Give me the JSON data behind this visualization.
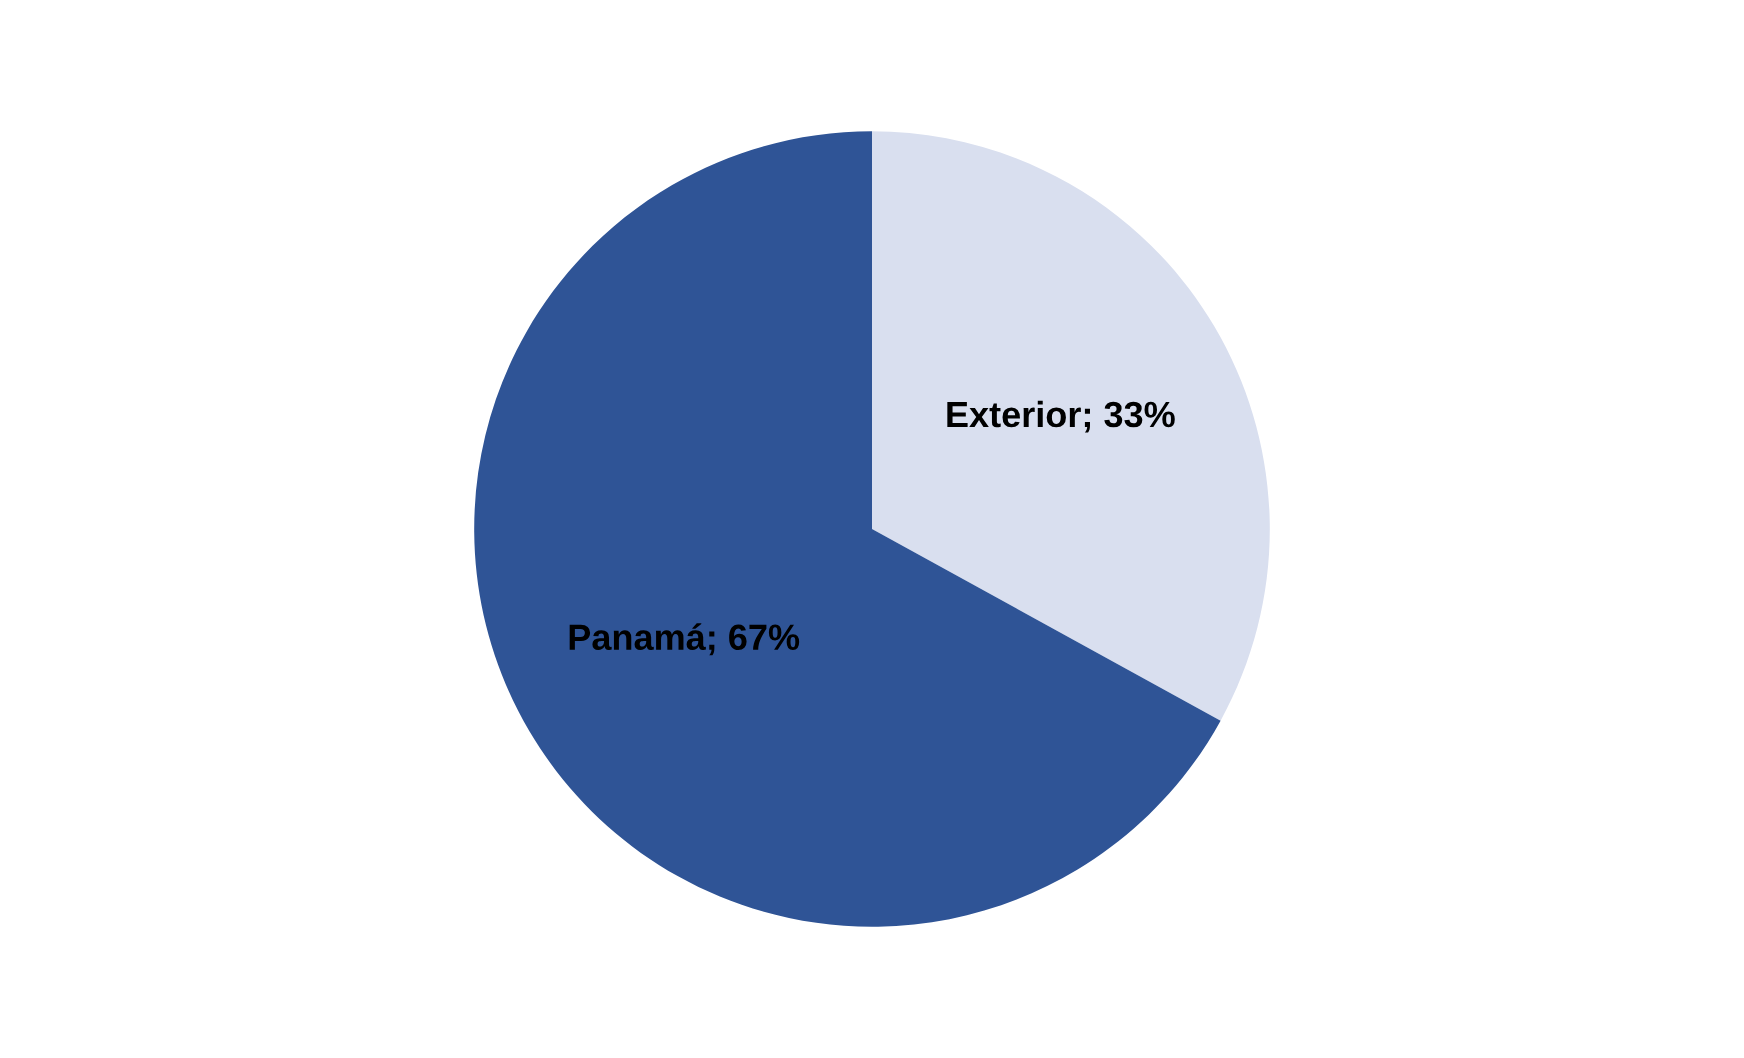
{
  "chart_data": {
    "type": "pie",
    "categories": [
      "Exterior",
      "Panamá"
    ],
    "values": [
      33,
      67
    ],
    "value_labels": [
      "33%",
      "67%"
    ],
    "colors": [
      "#d9dfef",
      "#2f5496"
    ],
    "legend": false
  }
}
